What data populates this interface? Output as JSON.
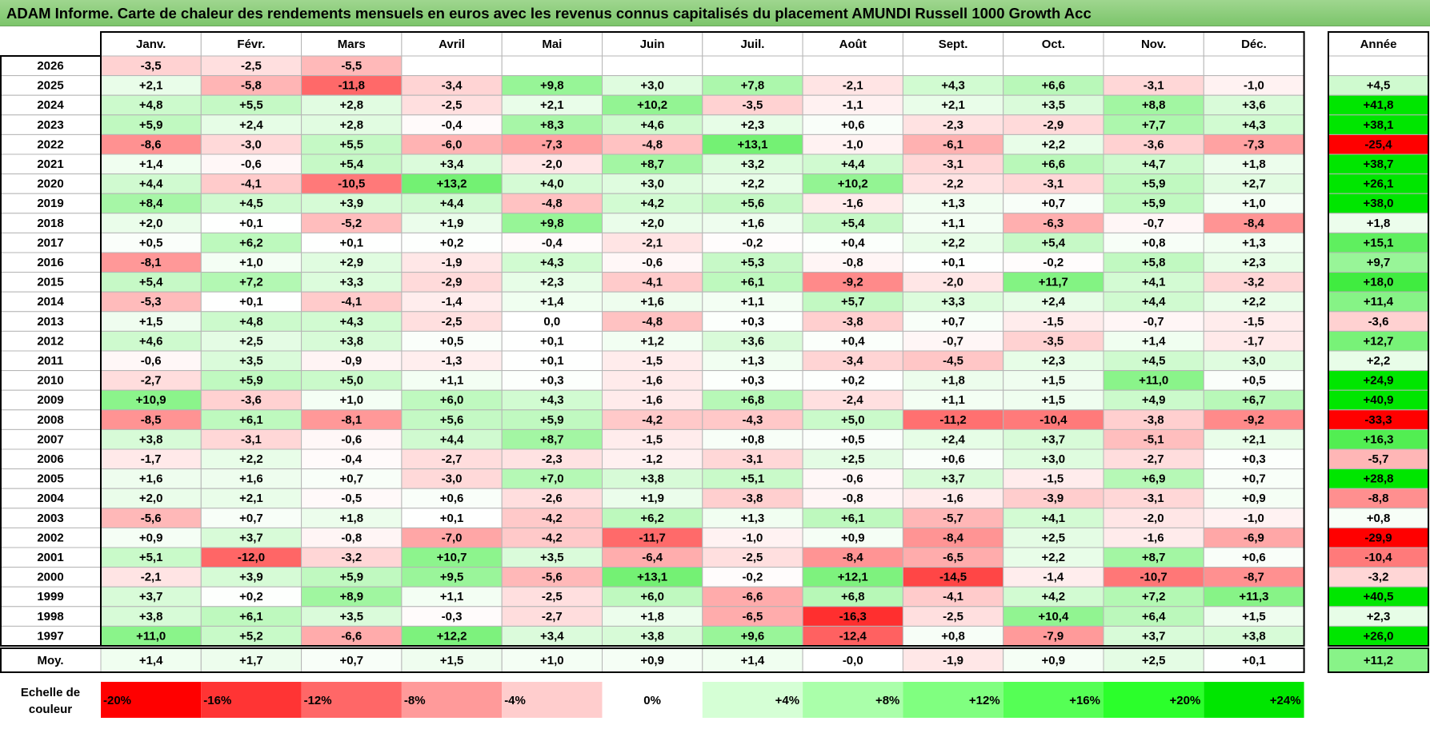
{
  "title": "ADAM Informe. Carte de chaleur des rendements mensuels en euros avec les revenus connus capitalisés du placement AMUNDI Russell 1000 Growth Acc",
  "chart_data": {
    "type": "heatmap",
    "columns": [
      "Janv.",
      "Févr.",
      "Mars",
      "Avril",
      "Mai",
      "Juin",
      "Juil.",
      "Août",
      "Sept.",
      "Oct.",
      "Nov.",
      "Déc."
    ],
    "year_label": "Année",
    "rows": [
      {
        "year": "2026",
        "months": [
          "-3,5",
          "-2,5",
          "-5,5",
          "",
          "",
          "",
          "",
          "",
          "",
          "",
          "",
          ""
        ],
        "annual": ""
      },
      {
        "year": "2025",
        "months": [
          "+2,1",
          "-5,8",
          "-11,8",
          "-3,4",
          "+9,8",
          "+3,0",
          "+7,8",
          "-2,1",
          "+4,3",
          "+6,6",
          "-3,1",
          "-1,0"
        ],
        "annual": "+4,5"
      },
      {
        "year": "2024",
        "months": [
          "+4,8",
          "+5,5",
          "+2,8",
          "-2,5",
          "+2,1",
          "+10,2",
          "-3,5",
          "-1,1",
          "+2,1",
          "+3,5",
          "+8,8",
          "+3,6"
        ],
        "annual": "+41,8"
      },
      {
        "year": "2023",
        "months": [
          "+5,9",
          "+2,4",
          "+2,8",
          "-0,4",
          "+8,3",
          "+4,6",
          "+2,3",
          "+0,6",
          "-2,3",
          "-2,9",
          "+7,7",
          "+4,3"
        ],
        "annual": "+38,1"
      },
      {
        "year": "2022",
        "months": [
          "-8,6",
          "-3,0",
          "+5,5",
          "-6,0",
          "-7,3",
          "-4,8",
          "+13,1",
          "-1,0",
          "-6,1",
          "+2,2",
          "-3,6",
          "-7,3"
        ],
        "annual": "-25,4"
      },
      {
        "year": "2021",
        "months": [
          "+1,4",
          "-0,6",
          "+5,4",
          "+3,4",
          "-2,0",
          "+8,7",
          "+3,2",
          "+4,4",
          "-3,1",
          "+6,6",
          "+4,7",
          "+1,8"
        ],
        "annual": "+38,7"
      },
      {
        "year": "2020",
        "months": [
          "+4,4",
          "-4,1",
          "-10,5",
          "+13,2",
          "+4,0",
          "+3,0",
          "+2,2",
          "+10,2",
          "-2,2",
          "-3,1",
          "+5,9",
          "+2,7"
        ],
        "annual": "+26,1"
      },
      {
        "year": "2019",
        "months": [
          "+8,4",
          "+4,5",
          "+3,9",
          "+4,4",
          "-4,8",
          "+4,2",
          "+5,6",
          "-1,6",
          "+1,3",
          "+0,7",
          "+5,9",
          "+1,0"
        ],
        "annual": "+38,0"
      },
      {
        "year": "2018",
        "months": [
          "+2,0",
          "+0,1",
          "-5,2",
          "+1,9",
          "+9,8",
          "+2,0",
          "+1,6",
          "+5,4",
          "+1,1",
          "-6,3",
          "-0,7",
          "-8,4"
        ],
        "annual": "+1,8"
      },
      {
        "year": "2017",
        "months": [
          "+0,5",
          "+6,2",
          "+0,1",
          "+0,2",
          "-0,4",
          "-2,1",
          "-0,2",
          "+0,4",
          "+2,2",
          "+5,4",
          "+0,8",
          "+1,3"
        ],
        "annual": "+15,1"
      },
      {
        "year": "2016",
        "months": [
          "-8,1",
          "+1,0",
          "+2,9",
          "-1,9",
          "+4,3",
          "-0,6",
          "+5,3",
          "-0,8",
          "+0,1",
          "-0,2",
          "+5,8",
          "+2,3"
        ],
        "annual": "+9,7"
      },
      {
        "year": "2015",
        "months": [
          "+5,4",
          "+7,2",
          "+3,3",
          "-2,9",
          "+2,3",
          "-4,1",
          "+6,1",
          "-9,2",
          "-2,0",
          "+11,7",
          "+4,1",
          "-3,2"
        ],
        "annual": "+18,0"
      },
      {
        "year": "2014",
        "months": [
          "-5,3",
          "+0,1",
          "-4,1",
          "-1,4",
          "+1,4",
          "+1,6",
          "+1,1",
          "+5,7",
          "+3,3",
          "+2,4",
          "+4,4",
          "+2,2"
        ],
        "annual": "+11,4"
      },
      {
        "year": "2013",
        "months": [
          "+1,5",
          "+4,8",
          "+4,3",
          "-2,5",
          "0,0",
          "-4,8",
          "+0,3",
          "-3,8",
          "+0,7",
          "-1,5",
          "-0,7",
          "-1,5"
        ],
        "annual": "-3,6"
      },
      {
        "year": "2012",
        "months": [
          "+4,6",
          "+2,5",
          "+3,8",
          "+0,5",
          "+0,1",
          "+1,2",
          "+3,6",
          "+0,4",
          "-0,7",
          "-3,5",
          "+1,4",
          "-1,7"
        ],
        "annual": "+12,7"
      },
      {
        "year": "2011",
        "months": [
          "-0,6",
          "+3,5",
          "-0,9",
          "-1,3",
          "+0,1",
          "-1,5",
          "+1,3",
          "-3,4",
          "-4,5",
          "+2,3",
          "+4,5",
          "+3,0"
        ],
        "annual": "+2,2"
      },
      {
        "year": "2010",
        "months": [
          "-2,7",
          "+5,9",
          "+5,0",
          "+1,1",
          "+0,3",
          "-1,6",
          "+0,3",
          "+0,2",
          "+1,8",
          "+1,5",
          "+11,0",
          "+0,5"
        ],
        "annual": "+24,9"
      },
      {
        "year": "2009",
        "months": [
          "+10,9",
          "-3,6",
          "+1,0",
          "+6,0",
          "+4,3",
          "-1,6",
          "+6,8",
          "-2,4",
          "+1,1",
          "+1,5",
          "+4,9",
          "+6,7"
        ],
        "annual": "+40,9"
      },
      {
        "year": "2008",
        "months": [
          "-8,5",
          "+6,1",
          "-8,1",
          "+5,6",
          "+5,9",
          "-4,2",
          "-4,3",
          "+5,0",
          "-11,2",
          "-10,4",
          "-3,8",
          "-9,2"
        ],
        "annual": "-33,3"
      },
      {
        "year": "2007",
        "months": [
          "+3,8",
          "-3,1",
          "-0,6",
          "+4,4",
          "+8,7",
          "-1,5",
          "+0,8",
          "+0,5",
          "+2,4",
          "+3,7",
          "-5,1",
          "+2,1"
        ],
        "annual": "+16,3"
      },
      {
        "year": "2006",
        "months": [
          "-1,7",
          "+2,2",
          "-0,4",
          "-2,7",
          "-2,3",
          "-1,2",
          "-3,1",
          "+2,5",
          "+0,6",
          "+3,0",
          "-2,7",
          "+0,3"
        ],
        "annual": "-5,7"
      },
      {
        "year": "2005",
        "months": [
          "+1,6",
          "+1,6",
          "+0,7",
          "-3,0",
          "+7,0",
          "+3,8",
          "+5,1",
          "-0,6",
          "+3,7",
          "-1,5",
          "+6,9",
          "+0,7"
        ],
        "annual": "+28,8"
      },
      {
        "year": "2004",
        "months": [
          "+2,0",
          "+2,1",
          "-0,5",
          "+0,6",
          "-2,6",
          "+1,9",
          "-3,8",
          "-0,8",
          "-1,6",
          "-3,9",
          "-3,1",
          "+0,9"
        ],
        "annual": "-8,8"
      },
      {
        "year": "2003",
        "months": [
          "-5,6",
          "+0,7",
          "+1,8",
          "+0,1",
          "-4,2",
          "+6,2",
          "+1,3",
          "+6,1",
          "-5,7",
          "+4,1",
          "-2,0",
          "-1,0"
        ],
        "annual": "+0,8"
      },
      {
        "year": "2002",
        "months": [
          "+0,9",
          "+3,7",
          "-0,8",
          "-7,0",
          "-4,2",
          "-11,7",
          "-1,0",
          "+0,9",
          "-8,4",
          "+2,5",
          "-1,6",
          "-6,9"
        ],
        "annual": "-29,9"
      },
      {
        "year": "2001",
        "months": [
          "+5,1",
          "-12,0",
          "-3,2",
          "+10,7",
          "+3,5",
          "-6,4",
          "-2,5",
          "-8,4",
          "-6,5",
          "+2,2",
          "+8,7",
          "+0,6"
        ],
        "annual": "-10,4"
      },
      {
        "year": "2000",
        "months": [
          "-2,1",
          "+3,9",
          "+5,9",
          "+9,5",
          "-5,6",
          "+13,1",
          "-0,2",
          "+12,1",
          "-14,5",
          "-1,4",
          "-10,7",
          "-8,7"
        ],
        "annual": "-3,2"
      },
      {
        "year": "1999",
        "months": [
          "+3,7",
          "+0,2",
          "+8,9",
          "+1,1",
          "-2,5",
          "+6,0",
          "-6,6",
          "+6,8",
          "-4,1",
          "+4,2",
          "+7,2",
          "+11,3"
        ],
        "annual": "+40,5"
      },
      {
        "year": "1998",
        "months": [
          "+3,8",
          "+6,1",
          "+3,5",
          "-0,3",
          "-2,7",
          "+1,8",
          "-6,5",
          "-16,3",
          "-2,5",
          "+10,4",
          "+6,4",
          "+1,5"
        ],
        "annual": "+2,3"
      },
      {
        "year": "1997",
        "months": [
          "+11,0",
          "+5,2",
          "-6,6",
          "+12,2",
          "+3,4",
          "+3,8",
          "+9,6",
          "-12,4",
          "+0,8",
          "-7,9",
          "+3,7",
          "+3,8"
        ],
        "annual": "+26,0"
      }
    ],
    "average": {
      "label": "Moy.",
      "months": [
        "+1,4",
        "+1,7",
        "+0,7",
        "+1,5",
        "+1,0",
        "+0,9",
        "+1,4",
        "-0,0",
        "-1,9",
        "+0,9",
        "+2,5",
        "+0,1"
      ],
      "annual": "+11,2"
    },
    "scale": {
      "label_line1": "Echelle de",
      "label_line2": "couleur",
      "entries": [
        {
          "label": "-20%",
          "color": "#ff0000"
        },
        {
          "label": "-16%",
          "color": "#ff3434"
        },
        {
          "label": "-12%",
          "color": "#ff6767"
        },
        {
          "label": "-8%",
          "color": "#ff9a9a"
        },
        {
          "label": "-4%",
          "color": "#ffcdcd"
        },
        {
          "label": "0%",
          "color": "#ffffff"
        },
        {
          "label": "+4%",
          "color": "#d5ffd5"
        },
        {
          "label": "+8%",
          "color": "#aaffaa"
        },
        {
          "label": "+12%",
          "color": "#80ff80"
        },
        {
          "label": "+16%",
          "color": "#55ff55"
        },
        {
          "label": "+20%",
          "color": "#2bff2b"
        },
        {
          "label": "+24%",
          "color": "#00e600"
        }
      ]
    },
    "colors": {
      "title_bar": "#8fcf7e",
      "grid": "#b5b5b5",
      "border": "#000000"
    }
  }
}
